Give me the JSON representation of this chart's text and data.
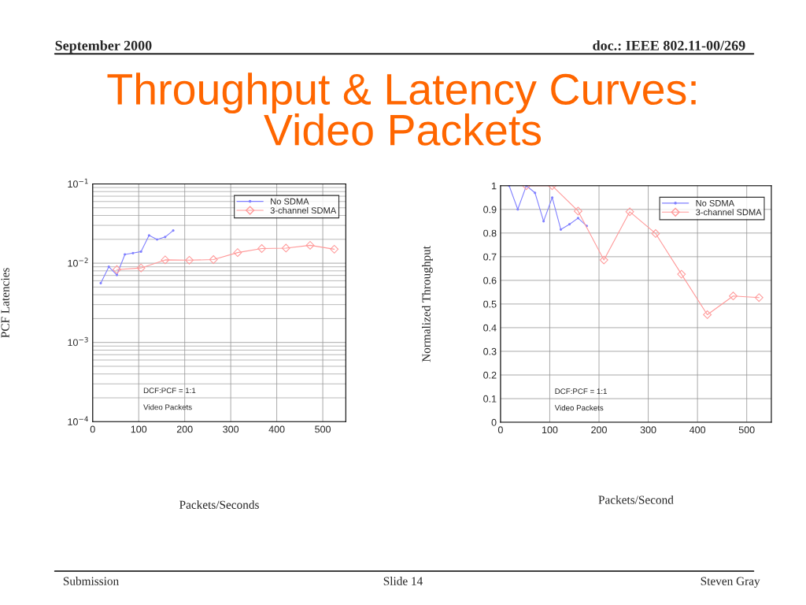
{
  "chart_data": [
    {
      "type": "line",
      "title": "Throughput & Latency Curves:\nVideo Packets",
      "xlabel": "Packets/Seconds",
      "ylabel": "PCF Latencies",
      "log": "y",
      "xlim": [
        0,
        550
      ],
      "xticks": [
        0,
        100,
        200,
        300,
        400,
        500
      ],
      "ylim": [
        0.0001,
        0.1
      ],
      "yticks": [
        {
          "value": 0.0001,
          "label": "10$^{−4}$"
        },
        {
          "value": 0.001,
          "label": "10$^{−3}$"
        },
        {
          "value": 0.01,
          "label": "10$^{−2}$"
        },
        {
          "value": 0.1,
          "label": "10$^{−1}$"
        }
      ],
      "grid": true,
      "legend": "top right",
      "annotations": [
        "DCF:PCF = 1:1",
        "Video Packets",
        "September 2000",
        "doc.: IEEE 802.11-00/269",
        "Submission",
        "Slide 14",
        "Steven Gray"
      ],
      "series": [
        {
          "name": "No SDMA",
          "color": "#8080ff",
          "marker": "circle",
          "x": [
            17.5,
            35,
            52.5,
            70,
            87.5,
            105,
            122.5,
            140,
            157.5,
            175
          ],
          "values": [
            0.0056,
            0.009,
            0.0071,
            0.0129,
            0.0134,
            0.014,
            0.0224,
            0.0199,
            0.0214,
            0.0258
          ]
        },
        {
          "name": "3-channel SDMA",
          "color": "#ff9999",
          "marker": "diamond",
          "x": [
            52.5,
            105,
            157.5,
            210,
            262.5,
            315,
            367.5,
            420,
            472.5,
            525
          ],
          "values": [
            0.0083,
            0.0087,
            0.011,
            0.0109,
            0.0111,
            0.0136,
            0.0153,
            0.0155,
            0.0168,
            0.015
          ]
        }
      ]
    },
    {
      "type": "line",
      "xlabel": "Packets/Second",
      "ylabel": "Normalized Throughput",
      "xlim": [
        0,
        550
      ],
      "xticks": [
        0,
        100,
        200,
        300,
        400,
        500
      ],
      "ylim": [
        0,
        1
      ],
      "yticks": [
        0,
        0.1,
        0.2,
        0.3,
        0.4,
        0.5,
        0.6,
        0.7,
        0.8,
        0.9,
        1
      ],
      "grid": true,
      "legend": "top right",
      "annotations": [
        "DCF:PCF = 1:1",
        "Video Packets"
      ],
      "series": [
        {
          "name": "No SDMA",
          "color": "#8080ff",
          "marker": "circle",
          "x": [
            17.5,
            35,
            52.5,
            70,
            87.5,
            105,
            122.5,
            140,
            157.5,
            175
          ],
          "values": [
            1.0,
            0.9,
            1.0,
            0.97,
            0.85,
            0.95,
            0.815,
            0.837,
            0.863,
            0.83
          ]
        },
        {
          "name": "3-channel SDMA",
          "color": "#ff9999",
          "marker": "diamond",
          "x": [
            52.5,
            105,
            157.5,
            210,
            262.5,
            315,
            367.5,
            420,
            472.5,
            525
          ],
          "values": [
            1.0,
            1.0,
            0.893,
            0.686,
            0.89,
            0.798,
            0.626,
            0.455,
            0.534,
            0.527
          ]
        }
      ]
    }
  ]
}
